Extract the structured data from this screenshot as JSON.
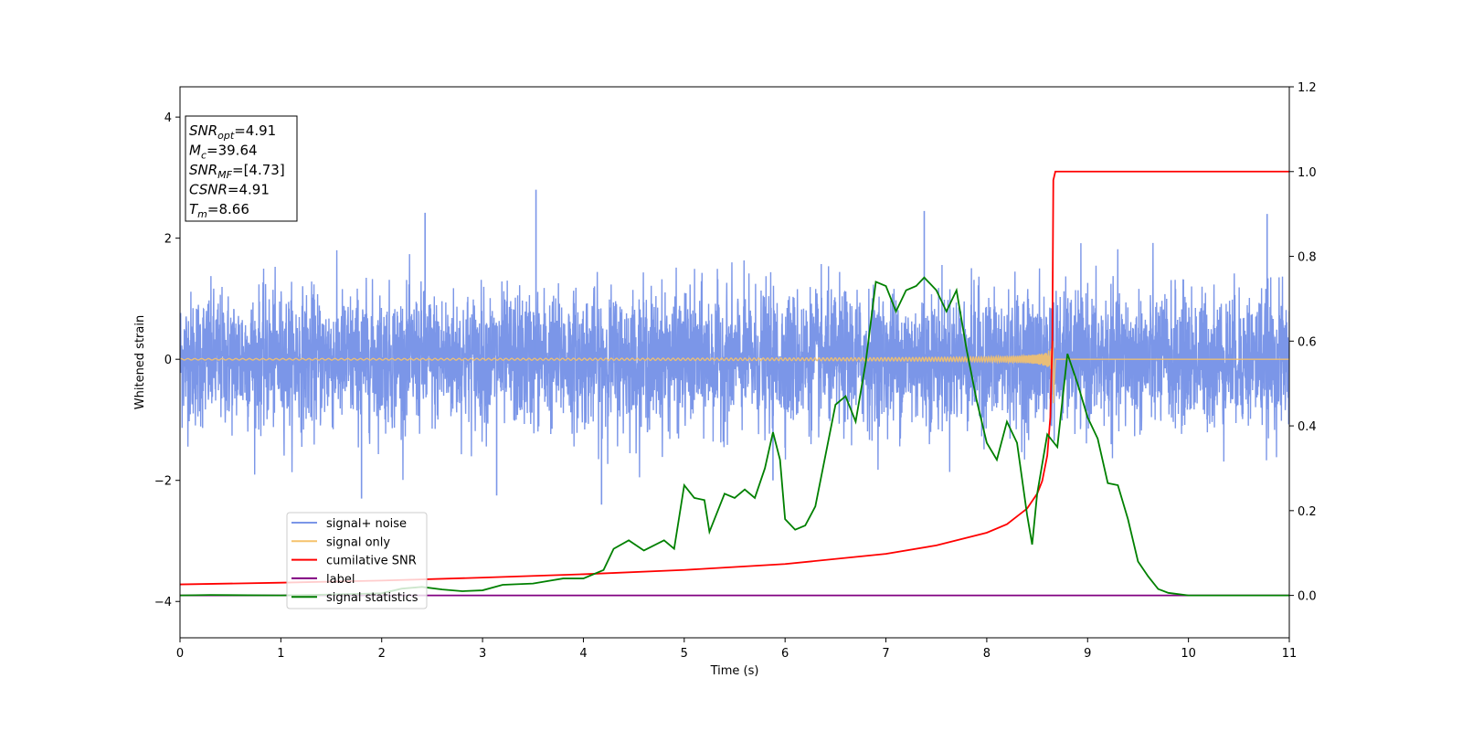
{
  "chart_data": {
    "type": "line",
    "xlabel": "Time (s)",
    "ylabel": "Whitened strain",
    "xlim": [
      0,
      11
    ],
    "ylim": [
      -4.6,
      4.5
    ],
    "y2lim": [
      -0.1,
      1.2
    ],
    "x_ticks": [
      "0",
      "1",
      "2",
      "3",
      "4",
      "5",
      "6",
      "7",
      "8",
      "9",
      "10",
      "11"
    ],
    "y_ticks": [
      "4",
      "2",
      "0",
      "−2",
      "−4"
    ],
    "y_tick_values": [
      4,
      2,
      0,
      -2,
      -4
    ],
    "y2_ticks": [
      "1.2",
      "1.0",
      "0.8",
      "0.6",
      "0.4",
      "0.2",
      "0.0"
    ],
    "y2_tick_values": [
      1.2,
      1.0,
      0.8,
      0.6,
      0.4,
      0.2,
      0.0
    ],
    "grid": false,
    "legend_position": "lower-left",
    "colors": {
      "noise": "#7b96e8",
      "signal": "#f5c26b",
      "cumulative": "#ff0000",
      "label": "#800080",
      "stats": "#008000"
    },
    "series": [
      {
        "key": "noise",
        "name": "signal+ noise",
        "axis": "left",
        "description_envelope": {
          "typical_amplitude": 1.3,
          "max_peak": 2.8,
          "min_peak": -2.8
        },
        "peaks": [
          [
            3.53,
            2.8
          ],
          [
            2.43,
            2.42
          ],
          [
            7.38,
            2.45
          ],
          [
            10.78,
            2.4
          ],
          [
            4.18,
            -2.4
          ],
          [
            5.88,
            -2.0
          ],
          [
            1.8,
            -2.3
          ],
          [
            3.14,
            -2.25
          ]
        ]
      },
      {
        "key": "signal",
        "name": "signal only",
        "axis": "left",
        "merger_time": 8.66,
        "peak_amplitude": 0.55
      },
      {
        "key": "cumulative",
        "name": "cumilative SNR",
        "axis": "right",
        "points": [
          [
            0,
            0.026
          ],
          [
            1,
            0.03
          ],
          [
            2,
            0.035
          ],
          [
            3,
            0.042
          ],
          [
            4,
            0.05
          ],
          [
            5,
            0.06
          ],
          [
            6,
            0.074
          ],
          [
            7,
            0.098
          ],
          [
            7.5,
            0.118
          ],
          [
            8,
            0.148
          ],
          [
            8.2,
            0.168
          ],
          [
            8.4,
            0.205
          ],
          [
            8.5,
            0.24
          ],
          [
            8.55,
            0.27
          ],
          [
            8.6,
            0.33
          ],
          [
            8.63,
            0.42
          ],
          [
            8.65,
            0.6
          ],
          [
            8.66,
            0.98
          ],
          [
            8.68,
            1.0
          ],
          [
            11,
            1.0
          ]
        ]
      },
      {
        "key": "label",
        "name": "label",
        "axis": "right",
        "points": [
          [
            0,
            0.0
          ],
          [
            11,
            0.0
          ]
        ]
      },
      {
        "key": "stats",
        "name": "signal statistics",
        "axis": "right",
        "points": [
          [
            0,
            0.0
          ],
          [
            0.3,
            0.001
          ],
          [
            1,
            0.0
          ],
          [
            1.5,
            0.002
          ],
          [
            2,
            0.005
          ],
          [
            2.2,
            0.016
          ],
          [
            2.4,
            0.02
          ],
          [
            2.6,
            0.014
          ],
          [
            2.8,
            0.01
          ],
          [
            3.0,
            0.012
          ],
          [
            3.2,
            0.025
          ],
          [
            3.5,
            0.028
          ],
          [
            3.8,
            0.04
          ],
          [
            4.0,
            0.04
          ],
          [
            4.2,
            0.06
          ],
          [
            4.3,
            0.11
          ],
          [
            4.45,
            0.13
          ],
          [
            4.6,
            0.106
          ],
          [
            4.8,
            0.13
          ],
          [
            4.9,
            0.11
          ],
          [
            5.0,
            0.26
          ],
          [
            5.1,
            0.23
          ],
          [
            5.2,
            0.225
          ],
          [
            5.25,
            0.15
          ],
          [
            5.4,
            0.24
          ],
          [
            5.5,
            0.23
          ],
          [
            5.6,
            0.25
          ],
          [
            5.7,
            0.23
          ],
          [
            5.8,
            0.3
          ],
          [
            5.88,
            0.385
          ],
          [
            5.95,
            0.32
          ],
          [
            6.0,
            0.18
          ],
          [
            6.1,
            0.155
          ],
          [
            6.2,
            0.165
          ],
          [
            6.3,
            0.21
          ],
          [
            6.4,
            0.33
          ],
          [
            6.5,
            0.45
          ],
          [
            6.6,
            0.47
          ],
          [
            6.7,
            0.41
          ],
          [
            6.8,
            0.55
          ],
          [
            6.9,
            0.74
          ],
          [
            7.0,
            0.73
          ],
          [
            7.1,
            0.67
          ],
          [
            7.2,
            0.72
          ],
          [
            7.3,
            0.73
          ],
          [
            7.38,
            0.75
          ],
          [
            7.5,
            0.72
          ],
          [
            7.6,
            0.67
          ],
          [
            7.7,
            0.72
          ],
          [
            7.8,
            0.58
          ],
          [
            7.9,
            0.46
          ],
          [
            8.0,
            0.36
          ],
          [
            8.1,
            0.32
          ],
          [
            8.2,
            0.41
          ],
          [
            8.3,
            0.36
          ],
          [
            8.4,
            0.19
          ],
          [
            8.45,
            0.12
          ],
          [
            8.5,
            0.24
          ],
          [
            8.6,
            0.38
          ],
          [
            8.7,
            0.35
          ],
          [
            8.8,
            0.57
          ],
          [
            8.9,
            0.5
          ],
          [
            9.0,
            0.42
          ],
          [
            9.1,
            0.37
          ],
          [
            9.2,
            0.265
          ],
          [
            9.3,
            0.26
          ],
          [
            9.4,
            0.18
          ],
          [
            9.5,
            0.08
          ],
          [
            9.6,
            0.045
          ],
          [
            9.7,
            0.015
          ],
          [
            9.8,
            0.006
          ],
          [
            10.0,
            0.0
          ],
          [
            11,
            0.0
          ]
        ]
      }
    ],
    "annotation": {
      "lines": [
        {
          "var": "SNR",
          "sub": "opt",
          "value": "=4.91"
        },
        {
          "var": "M",
          "sub": "c",
          "value": "=39.64"
        },
        {
          "var": "SNR",
          "sub": "MF",
          "value": "=[4.73]"
        },
        {
          "var": "CSNR",
          "sub": "",
          "value": "=4.91"
        },
        {
          "var": "T",
          "sub": "m",
          "value": "=8.66"
        }
      ]
    }
  }
}
